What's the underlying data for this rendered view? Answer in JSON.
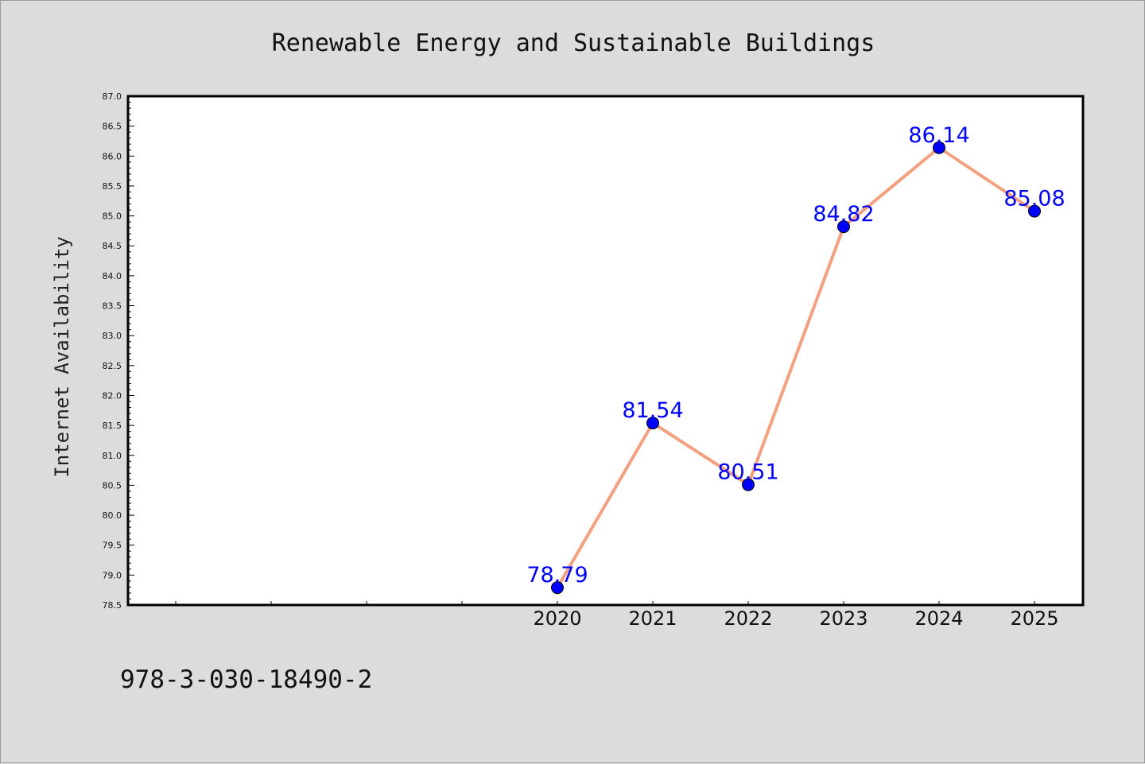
{
  "chart_data": {
    "type": "line",
    "title": "Renewable Energy and Sustainable Buildings",
    "xlabel": "",
    "ylabel": "Internet Availability",
    "categories": [
      "2020",
      "2021",
      "2022",
      "2023",
      "2024",
      "2025"
    ],
    "series": [
      {
        "values": [
          78.79,
          81.54,
          80.51,
          84.82,
          86.14,
          85.08
        ]
      }
    ],
    "data_labels": [
      "78.79",
      "81.54",
      "80.51",
      "84.82",
      "86.14",
      "85.08"
    ],
    "ylim": [
      78.5,
      87.0
    ],
    "yticks": [
      "78.5",
      "79.0",
      "79.5",
      "80.0",
      "80.5",
      "81.0",
      "81.5",
      "82.0",
      "82.5",
      "83.0",
      "83.5",
      "84.0",
      "84.5",
      "85.0",
      "85.5",
      "86.0",
      "86.5",
      "87.0"
    ],
    "grid": false,
    "legend": "none",
    "colors": {
      "line": "#f4a07f",
      "marker": "#0000ff",
      "labels": "#0000ff",
      "background": "#dcdcdc",
      "plot_area": "#ffffff"
    }
  },
  "footer": {
    "isbn": "978-3-030-18490-2"
  }
}
